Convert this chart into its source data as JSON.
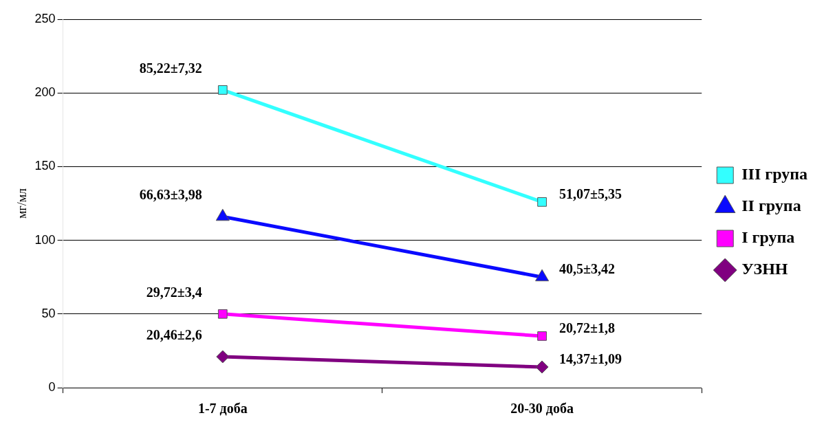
{
  "chart_data": {
    "type": "line",
    "ylabel": "мг/мл",
    "categories": [
      "1-7 доба",
      "20-30 доба"
    ],
    "series": [
      {
        "name": "III група",
        "color": "#33ffff",
        "marker": "square",
        "values": [
          202,
          126
        ]
      },
      {
        "name": "II група",
        "color": "#0a0aff",
        "marker": "triangle",
        "values": [
          116,
          75
        ]
      },
      {
        "name": "I група",
        "color": "#ff00ff",
        "marker": "square",
        "values": [
          50,
          35
        ]
      },
      {
        "name": "УЗНН",
        "color": "#800080",
        "marker": "diamond",
        "values": [
          21,
          14
        ]
      }
    ],
    "annotations": [
      {
        "text": "85,22±7,32",
        "x": "1-7 доба",
        "y": 202
      },
      {
        "text": "51,07±5,35",
        "x": "20-30 доба",
        "y": 126
      },
      {
        "text": "66,63±3,98",
        "x": "1-7 доба",
        "y": 116
      },
      {
        "text": "40,5±3,42",
        "x": "20-30 доба",
        "y": 75
      },
      {
        "text": "29,72±3,4",
        "x": "1-7 доба",
        "y": 50
      },
      {
        "text": "20,72±1,8",
        "x": "20-30 доба",
        "y": 35
      },
      {
        "text": "20,46±2,6",
        "x": "1-7 доба",
        "y": 21
      },
      {
        "text": "14,37±1,09",
        "x": "20-30 доба",
        "y": 14
      }
    ],
    "ylim": [
      0,
      250
    ],
    "yticks": [
      0,
      50,
      100,
      150,
      200,
      250
    ],
    "grid": "y",
    "legend": "right"
  }
}
